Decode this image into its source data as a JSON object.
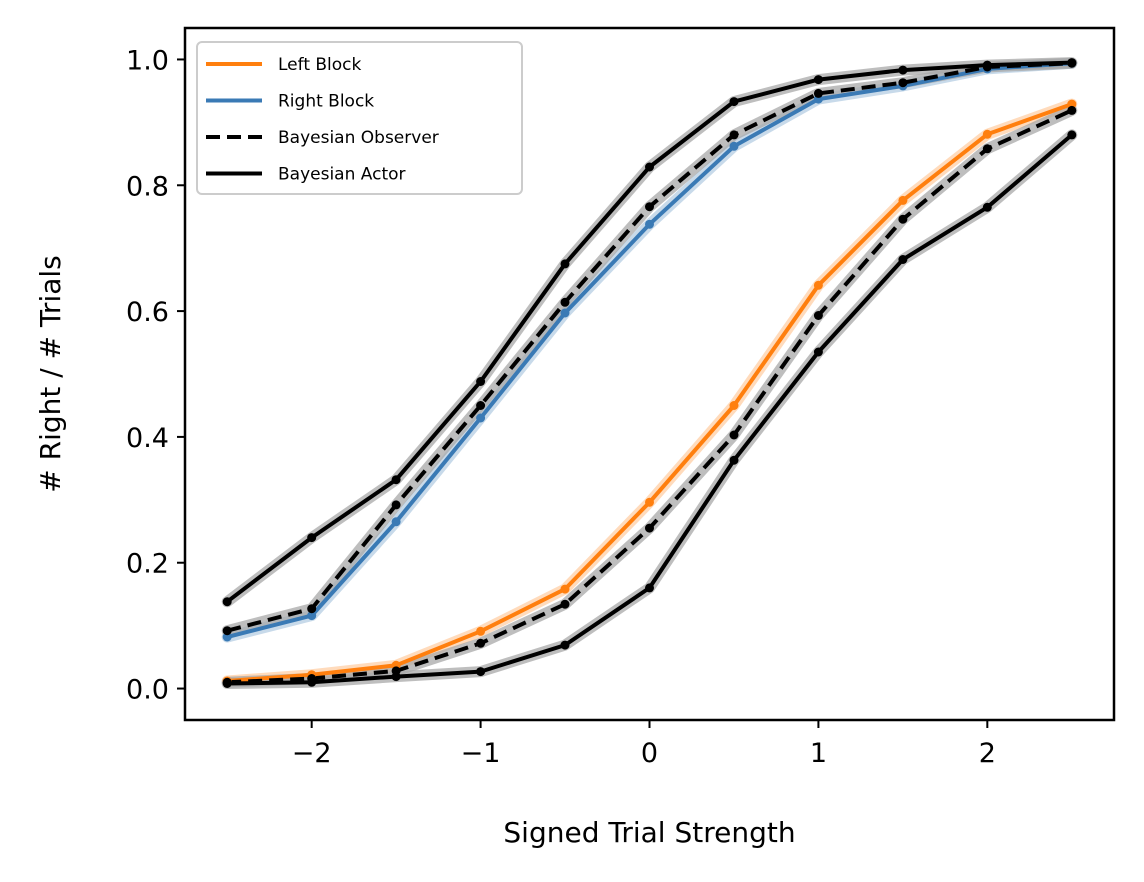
{
  "chart_data": {
    "type": "line",
    "xlabel": "Signed Trial Strength",
    "ylabel": "# Right / # Trials",
    "xlim": [
      -2.75,
      2.75
    ],
    "ylim": [
      -0.05,
      1.05
    ],
    "xticks": [
      -2,
      -1,
      0,
      1,
      2
    ],
    "xtick_labels": [
      "−2",
      "−1",
      "0",
      "1",
      "2"
    ],
    "yticks": [
      0.0,
      0.2,
      0.4,
      0.6,
      0.8,
      1.0
    ],
    "ytick_labels": [
      "0.0",
      "0.2",
      "0.4",
      "0.6",
      "0.8",
      "1.0"
    ],
    "grid": false,
    "legend_position": "top-left",
    "x": [
      -2.5,
      -2.0,
      -1.5,
      -1.0,
      -0.5,
      0.0,
      0.5,
      1.0,
      1.5,
      2.0,
      2.5
    ],
    "legend": [
      {
        "label": "Left Block",
        "color": "#ff7f0e",
        "style": "solid"
      },
      {
        "label": "Right Block",
        "color": "#3a7ab5",
        "style": "solid"
      },
      {
        "label": "Bayesian Observer",
        "color": "#000000",
        "style": "dashed"
      },
      {
        "label": "Bayesian Actor",
        "color": "#000000",
        "style": "solid"
      }
    ],
    "series": [
      {
        "group": "Left Block",
        "role": "data",
        "color": "#ff7f0e",
        "style": "solid",
        "values": [
          0.012,
          0.022,
          0.037,
          0.091,
          0.158,
          0.296,
          0.45,
          0.641,
          0.776,
          0.881,
          0.929
        ]
      },
      {
        "group": "Right Block",
        "role": "data",
        "color": "#3a7ab5",
        "style": "solid",
        "values": [
          0.082,
          0.116,
          0.265,
          0.43,
          0.597,
          0.738,
          0.862,
          0.937,
          0.958,
          0.985,
          0.994
        ]
      },
      {
        "group": "Left Block",
        "role": "Bayesian Observer",
        "color": "#000000",
        "style": "dashed",
        "values": [
          0.01,
          0.016,
          0.028,
          0.072,
          0.134,
          0.255,
          0.403,
          0.593,
          0.746,
          0.858,
          0.919
        ]
      },
      {
        "group": "Right Block",
        "role": "Bayesian Observer",
        "color": "#000000",
        "style": "dashed",
        "values": [
          0.092,
          0.127,
          0.292,
          0.45,
          0.614,
          0.766,
          0.88,
          0.946,
          0.963,
          0.988,
          0.994
        ]
      },
      {
        "group": "Left Block",
        "role": "Bayesian Actor",
        "color": "#000000",
        "style": "solid",
        "values": [
          0.008,
          0.01,
          0.019,
          0.027,
          0.069,
          0.16,
          0.363,
          0.535,
          0.682,
          0.765,
          0.88
        ]
      },
      {
        "group": "Right Block",
        "role": "Bayesian Actor",
        "color": "#000000",
        "style": "solid",
        "values": [
          0.138,
          0.24,
          0.332,
          0.488,
          0.675,
          0.829,
          0.933,
          0.968,
          0.983,
          0.991,
          0.995
        ]
      }
    ]
  }
}
